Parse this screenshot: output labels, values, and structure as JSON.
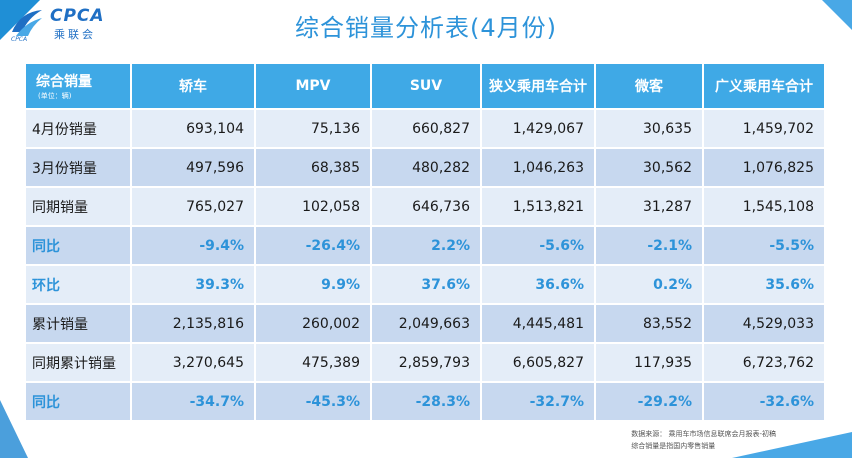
{
  "header": {
    "logo_text": "CPCA",
    "logo_cn": "乘联会",
    "logo_sub": "CPCA",
    "title": "综合销量分析表(4月份)"
  },
  "table": {
    "corner_label": "综合销量",
    "corner_unit": "(单位：辆)",
    "columns": [
      "轿车",
      "MPV",
      "SUV",
      "狭义乘用车合计",
      "微客",
      "广义乘用车合计"
    ],
    "rows": [
      {
        "label": "4月份销量",
        "values": [
          "693,104",
          "75,136",
          "660,827",
          "1,429,067",
          "30,635",
          "1,459,702"
        ],
        "ratio": false
      },
      {
        "label": "3月份销量",
        "values": [
          "497,596",
          "68,385",
          "480,282",
          "1,046,263",
          "30,562",
          "1,076,825"
        ],
        "ratio": false
      },
      {
        "label": "同期销量",
        "values": [
          "765,027",
          "102,058",
          "646,736",
          "1,513,821",
          "31,287",
          "1,545,108"
        ],
        "ratio": false
      },
      {
        "label": "同比",
        "values": [
          "-9.4%",
          "-26.4%",
          "2.2%",
          "-5.6%",
          "-2.1%",
          "-5.5%"
        ],
        "ratio": true
      },
      {
        "label": "环比",
        "values": [
          "39.3%",
          "9.9%",
          "37.6%",
          "36.6%",
          "0.2%",
          "35.6%"
        ],
        "ratio": true
      },
      {
        "label": "累计销量",
        "values": [
          "2,135,816",
          "260,002",
          "2,049,663",
          "4,445,481",
          "83,552",
          "4,529,033"
        ],
        "ratio": false
      },
      {
        "label": "同期累计销量",
        "values": [
          "3,270,645",
          "475,389",
          "2,859,793",
          "6,605,827",
          "117,935",
          "6,723,762"
        ],
        "ratio": false
      },
      {
        "label": "同比",
        "values": [
          "-34.7%",
          "-45.3%",
          "-28.3%",
          "-32.7%",
          "-29.2%",
          "-32.6%"
        ],
        "ratio": true
      }
    ]
  },
  "footer": {
    "source_label": "数据来源：",
    "source_text": "乘用车市场信息联席会月报表-初稿",
    "note": "综合销量是指国内零售销量"
  },
  "colors": {
    "accent": "#3fa9e6",
    "ratio_text": "#2d93d9",
    "row_light": "#e4edf8",
    "row_dark": "#c7d8ef"
  }
}
